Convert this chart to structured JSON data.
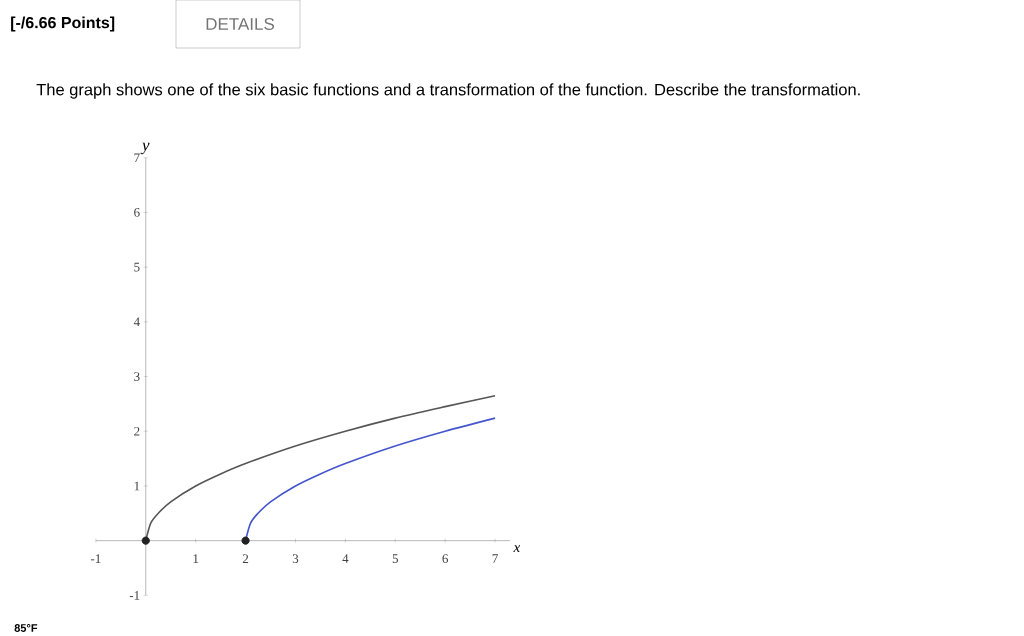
{
  "chart_data": {
    "type": "line",
    "title": "The graph shows one of the six basic functions and a transformation of the function. Describe the transformation.",
    "annotations": [
      "[-/6.66 Points]",
      "DETAILS",
      "85°F"
    ],
    "xlabel": "x",
    "ylabel": "y",
    "series": [
      {
        "color": "#555555",
        "x": [
          0,
          0.1,
          0.25,
          0.5,
          1,
          1.5,
          2,
          3,
          4,
          5,
          6,
          7
        ],
        "values": [
          0,
          0.32,
          0.5,
          0.71,
          1,
          1.22,
          1.41,
          1.73,
          2,
          2.24,
          2.45,
          2.65
        ]
      },
      {
        "color": "#4455cc",
        "x": [
          2,
          2.1,
          2.25,
          2.5,
          3,
          3.5,
          4,
          5,
          6,
          7
        ],
        "values": [
          0,
          0.32,
          0.5,
          0.71,
          1,
          1.22,
          1.41,
          1.73,
          2,
          2.24
        ]
      },
      {
        "type": "scatter",
        "marker": "circle",
        "color": "#222222",
        "x": [
          0,
          2
        ],
        "values": [
          0,
          0
        ]
      }
    ],
    "xlim": [
      -1,
      7.3
    ],
    "ylim": [
      -1,
      7
    ],
    "xticks": [
      -1,
      1,
      2,
      3,
      4,
      5,
      6,
      7
    ],
    "yticks": [
      -1,
      1,
      2,
      3,
      4,
      5,
      6,
      7
    ],
    "grid": false
  }
}
